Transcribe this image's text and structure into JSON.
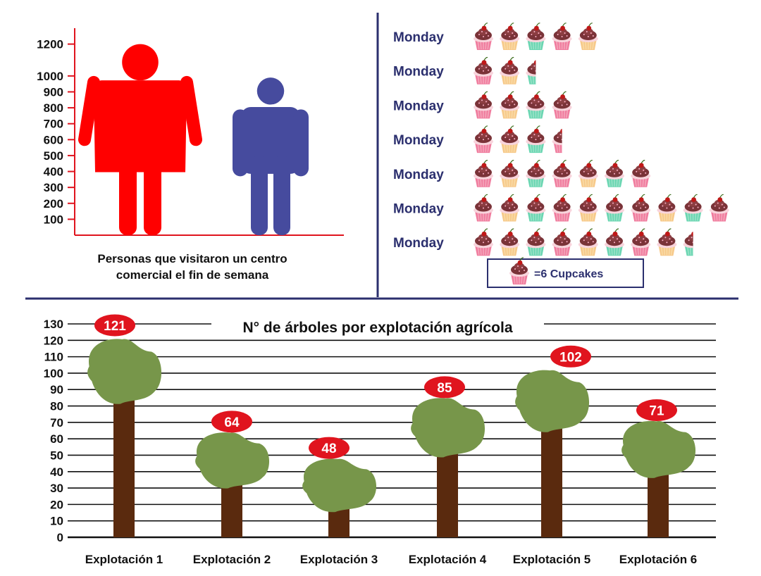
{
  "colors": {
    "female": "#ff0000",
    "male": "#464b9e",
    "axis_red": "#e0141e",
    "divider": "#2b2f6e",
    "tree_foliage": "#77964a",
    "tree_trunk": "#5a2a0e",
    "bubble": "#e0141e",
    "cup_pink": "#f07c9e",
    "cup_peach": "#f7c98a",
    "cup_mint": "#6ad6b2",
    "frosting": "#5a2a2e",
    "cherry": "#c01818"
  },
  "chart_data": [
    {
      "type": "pictograph",
      "title": "",
      "caption": "Personas que visitaron un centro comercial el fin de semana",
      "caption_lines": [
        "Personas que visitaron un centro",
        "comercial el fin de semana"
      ],
      "ylim": [
        0,
        1300
      ],
      "yticks": [
        100,
        200,
        300,
        400,
        500,
        600,
        700,
        800,
        900,
        1000,
        1200
      ],
      "series": [
        {
          "icon": "female-icon",
          "value": 1200
        },
        {
          "icon": "male-icon",
          "value": 1000
        }
      ]
    },
    {
      "type": "pictograph",
      "title": "",
      "categories": [
        "Monday",
        "Monday",
        "Monday",
        "Monday",
        "Monday",
        "Monday",
        "Monday"
      ],
      "icon": "cupcake-icon",
      "icon_value": 6,
      "values": [
        30,
        15,
        24,
        21,
        42,
        60,
        51
      ],
      "legend": {
        "label": "=6 Cupcakes",
        "position": "bottom"
      }
    },
    {
      "type": "bar",
      "title": "N° de árboles por explotación agrícola",
      "icon": "tree-icon",
      "categories": [
        "Explotación 1",
        "Explotación 2",
        "Explotación 3",
        "Explotación 4",
        "Explotación 5",
        "Explotación 6"
      ],
      "values": [
        121,
        64,
        48,
        85,
        102,
        71
      ],
      "data_labels": [
        "121",
        "64",
        "48",
        "85",
        "102",
        "71"
      ],
      "ylim": [
        0,
        130
      ],
      "yticks": [
        0,
        10,
        20,
        30,
        40,
        50,
        60,
        70,
        80,
        90,
        100,
        110,
        120,
        130
      ],
      "grid": true
    }
  ]
}
